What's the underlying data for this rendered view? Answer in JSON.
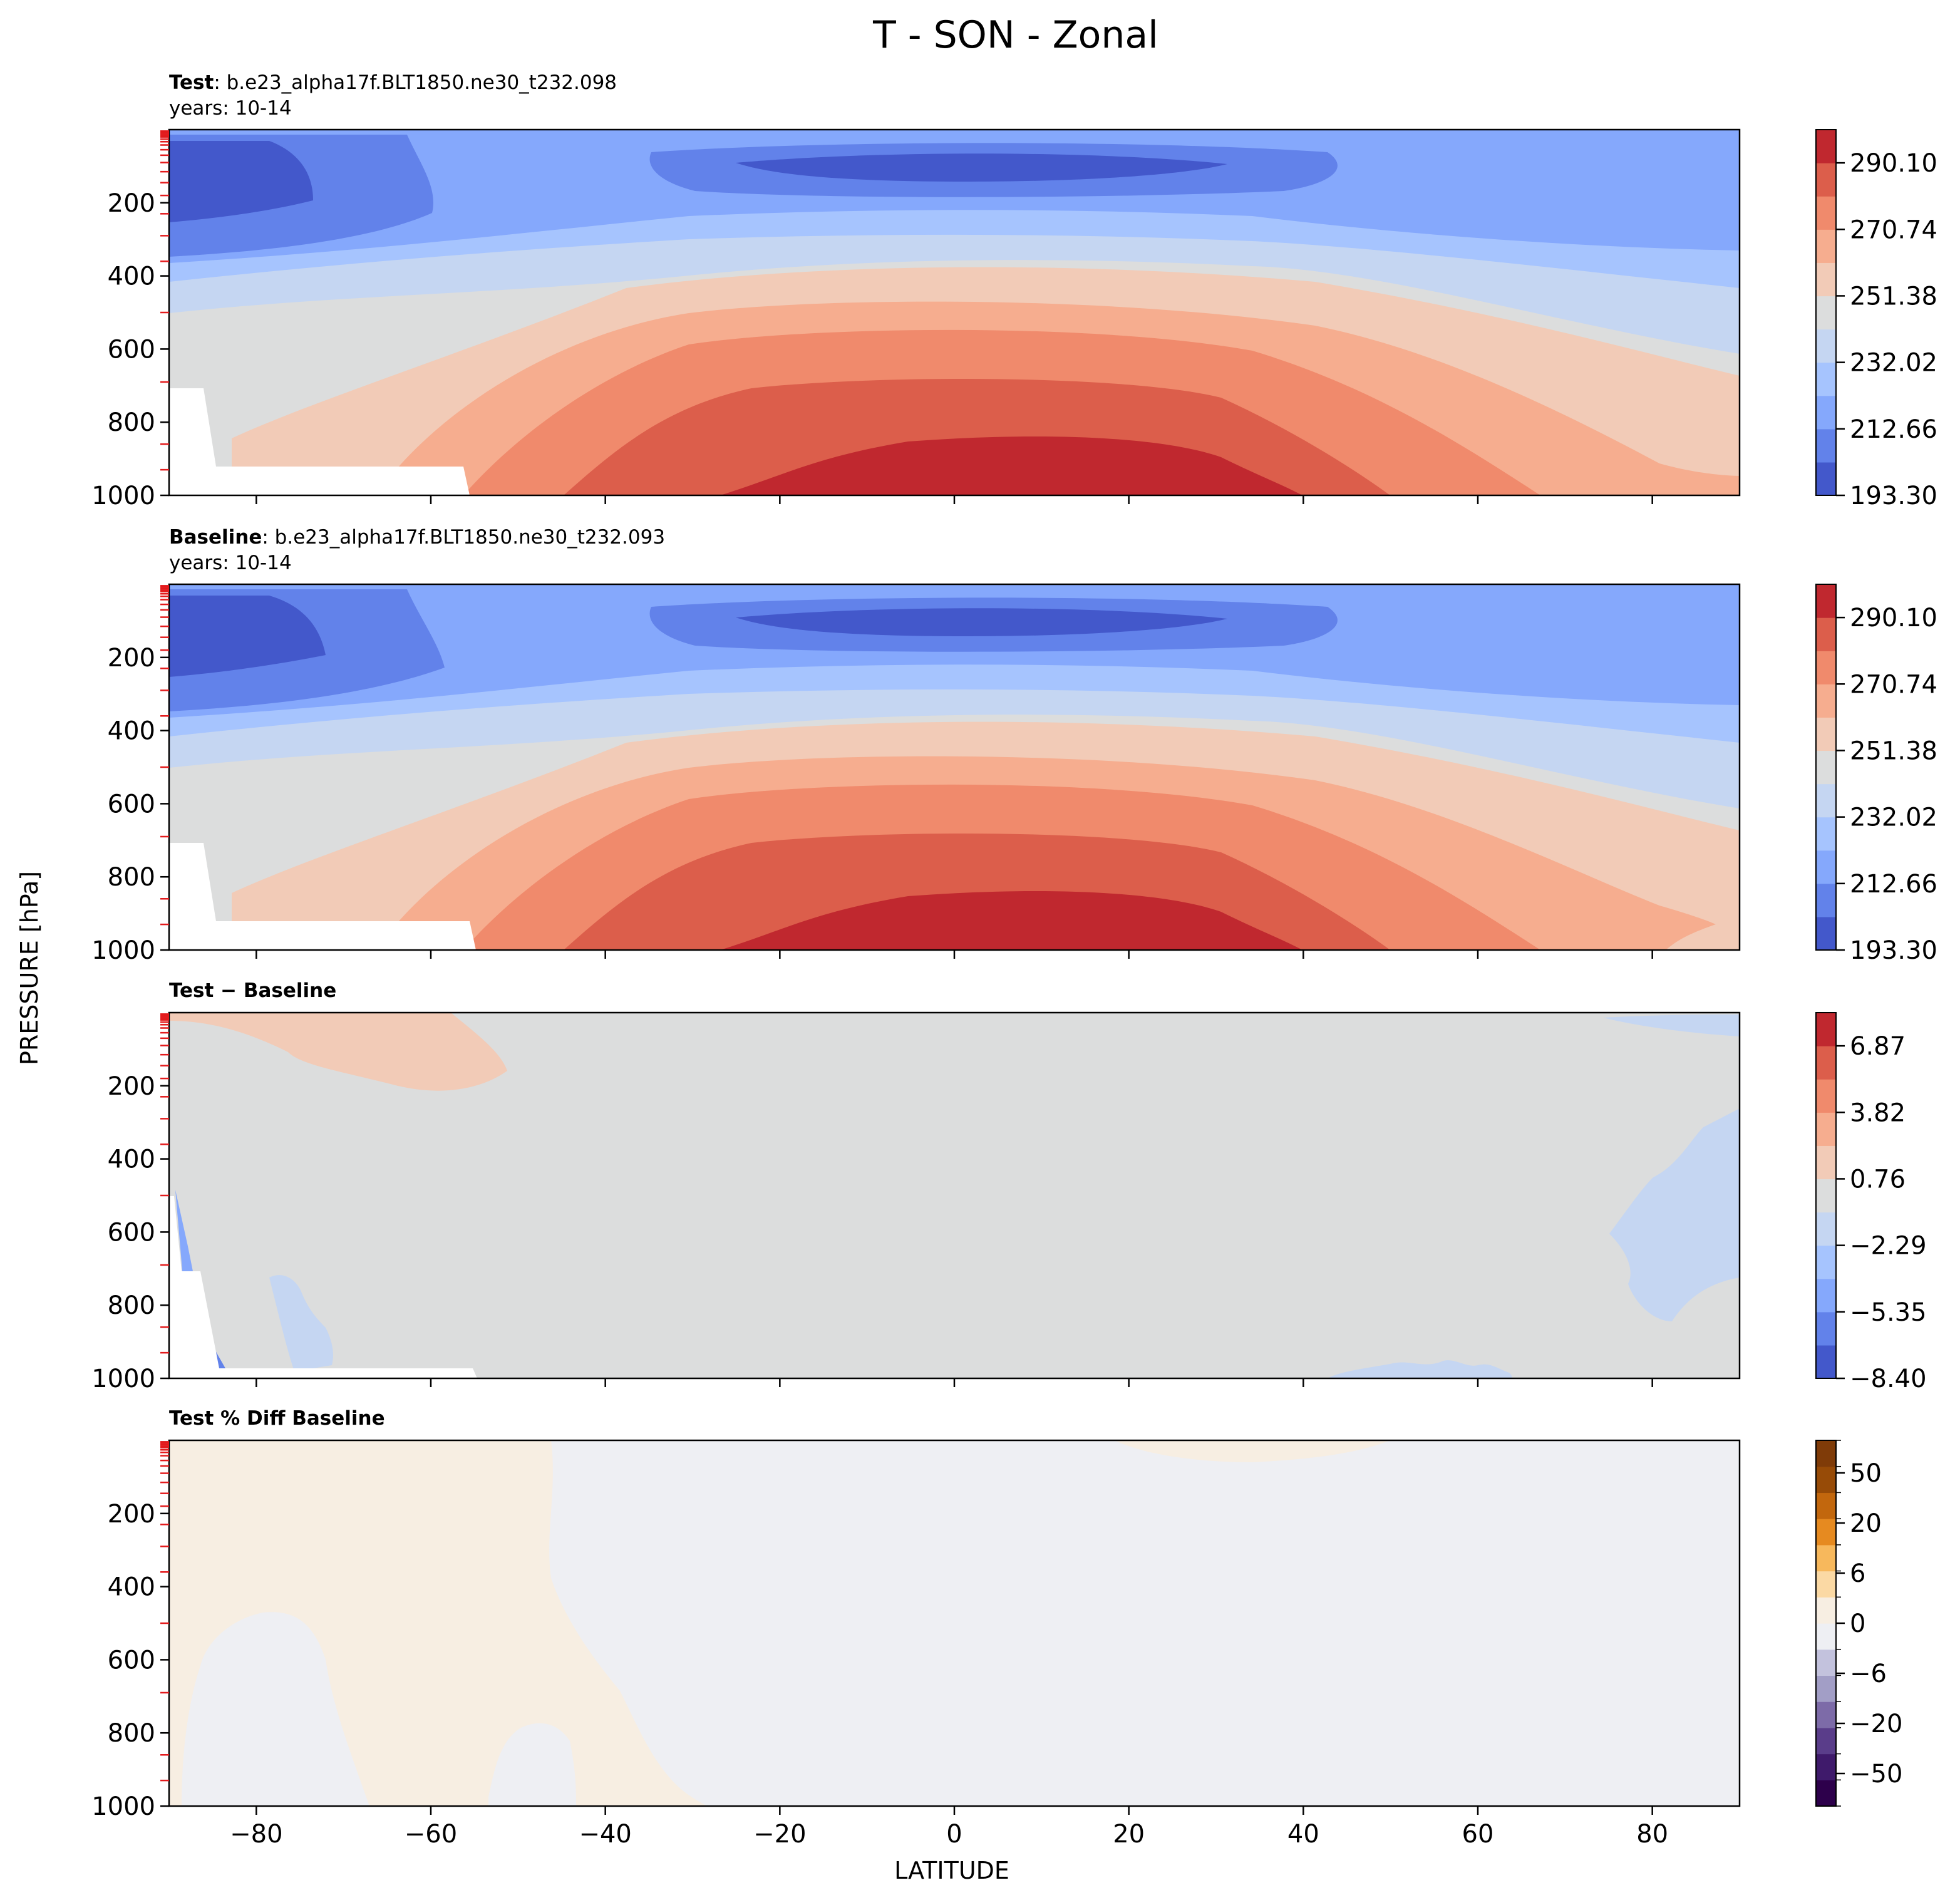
{
  "figure": {
    "title": "T - SON - Zonal",
    "xlabel": "LATITUDE",
    "ylabel": "PRESSURE [hPa]"
  },
  "chart_data": [
    {
      "type": "heatmap",
      "panel": "test",
      "title_bold": "Test",
      "title_rest": ": b.e23_alpha17f.BLT1850.ne30_t232.098",
      "subtitle": "years: 10-14",
      "x": [
        -90,
        -80,
        -60,
        -40,
        -20,
        0,
        20,
        40,
        60,
        80,
        90
      ],
      "xlim": [
        -90,
        90
      ],
      "ylim": [
        1000,
        0
      ],
      "xticks": [
        "−80",
        "−60",
        "−40",
        "−20",
        "0",
        "20",
        "40",
        "60",
        "80"
      ],
      "yticks": [
        "200",
        "400",
        "600",
        "800",
        "1000"
      ],
      "colorbar": {
        "range": [
          193.3,
          299.78
        ],
        "labels": [
          "290.10",
          "270.74",
          "251.38",
          "232.02",
          "212.66",
          "193.30"
        ],
        "levels": 11,
        "colors": [
          "#4358cb",
          "#6282ea",
          "#85a8fc",
          "#a6c4fe",
          "#c5d6f2",
          "#dcdddd",
          "#f2cbb7",
          "#f6ad8f",
          "#f08a6c",
          "#dc5e4b",
          "#c0282f"
        ]
      },
      "surface_mask": "white region over Antarctica below ~700 hPa"
    },
    {
      "type": "heatmap",
      "panel": "baseline",
      "title_bold": "Baseline",
      "title_rest": ": b.e23_alpha17f.BLT1850.ne30_t232.093",
      "subtitle": "years: 10-14",
      "xlim": [
        -90,
        90
      ],
      "ylim": [
        1000,
        0
      ],
      "xticks": [
        "−80",
        "−60",
        "−40",
        "−20",
        "0",
        "20",
        "40",
        "60",
        "80"
      ],
      "yticks": [
        "200",
        "400",
        "600",
        "800",
        "1000"
      ],
      "colorbar": {
        "range": [
          193.3,
          299.78
        ],
        "labels": [
          "290.10",
          "270.74",
          "251.38",
          "232.02",
          "212.66",
          "193.30"
        ],
        "levels": 11,
        "colors": [
          "#4358cb",
          "#6282ea",
          "#85a8fc",
          "#a6c4fe",
          "#c5d6f2",
          "#dcdddd",
          "#f2cbb7",
          "#f6ad8f",
          "#f08a6c",
          "#dc5e4b",
          "#c0282f"
        ]
      }
    },
    {
      "type": "heatmap",
      "panel": "diff",
      "title_bold": "Test − Baseline",
      "xlim": [
        -90,
        90
      ],
      "ylim": [
        1000,
        0
      ],
      "xticks": [
        "−80",
        "−60",
        "−40",
        "−20",
        "0",
        "20",
        "40",
        "60",
        "80"
      ],
      "yticks": [
        "200",
        "400",
        "600",
        "800",
        "1000"
      ],
      "colorbar": {
        "range": [
          -8.4,
          8.4
        ],
        "labels": [
          "6.87",
          "3.82",
          "0.76",
          "−2.29",
          "−5.35",
          "−8.40"
        ],
        "levels": 11,
        "colors": [
          "#4358cb",
          "#6282ea",
          "#85a8fc",
          "#a6c4fe",
          "#c5d6f2",
          "#dcdddd",
          "#f2cbb7",
          "#f6ad8f",
          "#f08a6c",
          "#dc5e4b",
          "#c0282f"
        ]
      }
    },
    {
      "type": "heatmap",
      "panel": "pctdiff",
      "title_bold": "Test % Diff Baseline",
      "xlim": [
        -90,
        90
      ],
      "ylim": [
        1000,
        0
      ],
      "xticks": [
        "−80",
        "−60",
        "−40",
        "−20",
        "0",
        "20",
        "40",
        "60",
        "80"
      ],
      "yticks": [
        "200",
        "400",
        "600",
        "800",
        "1000"
      ],
      "colorbar": {
        "labels": [
          "50",
          "20",
          "6",
          "0",
          "−6",
          "−20",
          "−50"
        ],
        "levels": 14,
        "colors": [
          "#2d004b",
          "#3f1a6b",
          "#5a3d8a",
          "#7d6ba8",
          "#a29ec6",
          "#c3c2dd",
          "#eeeff3",
          "#f7eee2",
          "#fbd9a4",
          "#f7b85c",
          "#e68a20",
          "#c2670d",
          "#974b07",
          "#7f3b08"
        ]
      }
    }
  ]
}
